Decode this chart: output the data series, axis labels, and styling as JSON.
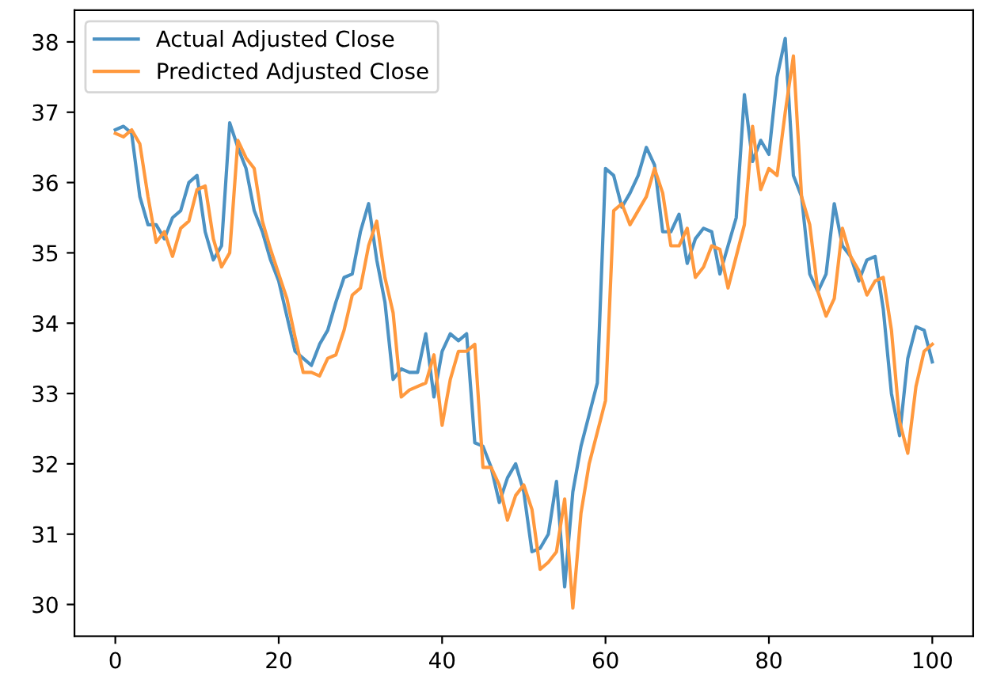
{
  "chart_data": {
    "type": "line",
    "x": [
      0,
      1,
      2,
      3,
      4,
      5,
      6,
      7,
      8,
      9,
      10,
      11,
      12,
      13,
      14,
      15,
      16,
      17,
      18,
      19,
      20,
      21,
      22,
      23,
      24,
      25,
      26,
      27,
      28,
      29,
      30,
      31,
      32,
      33,
      34,
      35,
      36,
      37,
      38,
      39,
      40,
      41,
      42,
      43,
      44,
      45,
      46,
      47,
      48,
      49,
      50,
      51,
      52,
      53,
      54,
      55,
      56,
      57,
      58,
      59,
      60,
      61,
      62,
      63,
      64,
      65,
      66,
      67,
      68,
      69,
      70,
      71,
      72,
      73,
      74,
      75,
      76,
      77,
      78,
      79,
      80,
      81,
      82,
      83,
      84,
      85,
      86,
      87,
      88,
      89,
      90,
      91,
      92,
      93,
      94,
      95,
      96,
      97,
      98,
      99,
      100
    ],
    "series": [
      {
        "name": "Actual Adjusted Close",
        "color": "#4c92c3",
        "values": [
          36.75,
          36.8,
          36.7,
          35.8,
          35.4,
          35.4,
          35.2,
          35.5,
          35.6,
          36.0,
          36.1,
          35.3,
          34.9,
          35.1,
          36.85,
          36.5,
          36.2,
          35.6,
          35.3,
          34.9,
          34.6,
          34.1,
          33.6,
          33.5,
          33.4,
          33.7,
          33.9,
          34.3,
          34.65,
          34.7,
          35.3,
          35.7,
          34.9,
          34.3,
          33.2,
          33.35,
          33.3,
          33.3,
          33.85,
          32.95,
          33.6,
          33.85,
          33.75,
          33.85,
          32.3,
          32.25,
          31.95,
          31.45,
          31.8,
          32.0,
          31.6,
          30.75,
          30.8,
          31.0,
          31.75,
          30.25,
          31.6,
          32.25,
          32.7,
          33.15,
          36.2,
          36.1,
          35.65,
          35.85,
          36.1,
          36.5,
          36.25,
          35.3,
          35.3,
          35.55,
          34.85,
          35.2,
          35.35,
          35.3,
          34.7,
          35.1,
          35.5,
          37.25,
          36.3,
          36.6,
          36.4,
          37.5,
          38.05,
          36.1,
          35.8,
          34.7,
          34.45,
          34.7,
          35.7,
          35.1,
          34.95,
          34.6,
          34.9,
          34.95,
          34.2,
          33.0,
          32.4,
          33.5,
          33.95,
          33.9,
          33.45
        ]
      },
      {
        "name": "Predicted Adjusted Close",
        "color": "#ff993e",
        "values": [
          36.7,
          36.65,
          36.75,
          36.55,
          35.8,
          35.15,
          35.3,
          34.95,
          35.35,
          35.45,
          35.9,
          35.95,
          35.2,
          34.8,
          35.0,
          36.6,
          36.35,
          36.2,
          35.45,
          35.05,
          34.7,
          34.35,
          33.8,
          33.3,
          33.3,
          33.25,
          33.5,
          33.55,
          33.9,
          34.4,
          34.5,
          35.1,
          35.45,
          34.65,
          34.15,
          32.95,
          33.05,
          33.1,
          33.15,
          33.55,
          32.55,
          33.2,
          33.6,
          33.6,
          33.7,
          31.95,
          31.95,
          31.7,
          31.2,
          31.55,
          31.7,
          31.35,
          30.5,
          30.6,
          30.75,
          31.5,
          29.95,
          31.3,
          32.0,
          32.45,
          32.9,
          35.6,
          35.7,
          35.4,
          35.6,
          35.8,
          36.2,
          35.85,
          35.1,
          35.1,
          35.35,
          34.65,
          34.8,
          35.1,
          35.05,
          34.5,
          34.95,
          35.4,
          36.8,
          35.9,
          36.2,
          36.1,
          37.0,
          37.8,
          35.8,
          35.4,
          34.45,
          34.1,
          34.35,
          35.35,
          34.95,
          34.75,
          34.4,
          34.6,
          34.65,
          33.9,
          32.6,
          32.15,
          33.1,
          33.6,
          33.7
        ]
      }
    ],
    "xlim": [
      -5,
      105
    ],
    "ylim": [
      29.55,
      38.45
    ],
    "xticks": [
      0,
      20,
      40,
      60,
      80,
      100
    ],
    "yticks": [
      30,
      31,
      32,
      33,
      34,
      35,
      36,
      37,
      38
    ],
    "legend": "top left",
    "grid": false
  }
}
